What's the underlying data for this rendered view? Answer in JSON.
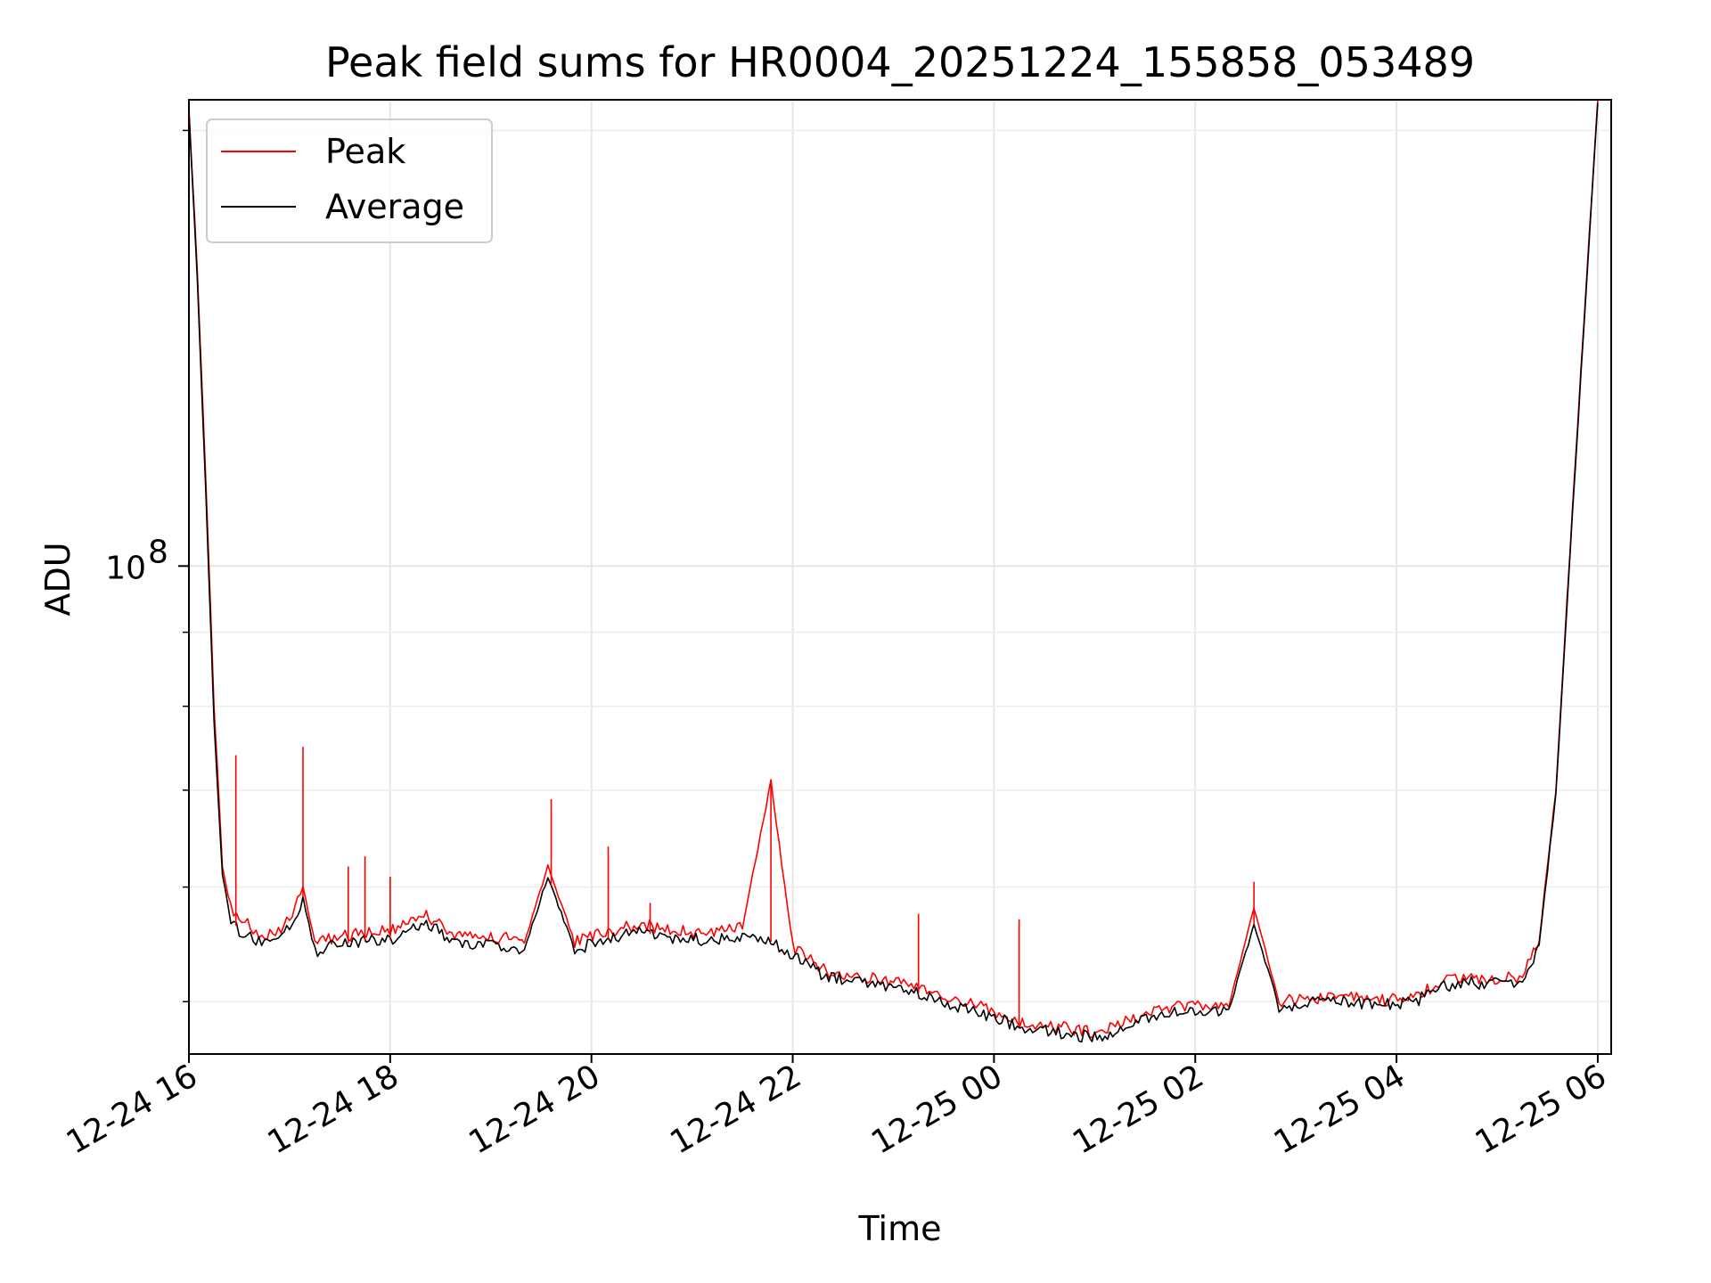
{
  "chart_data": {
    "type": "line",
    "title": "Peak field sums for HR0004_20251224_155858_053489",
    "xlabel": "Time",
    "ylabel": "ADU",
    "y_scale": "log",
    "ylim": [
      46000000,
      210000000
    ],
    "xlim": [
      "2025-12-24 16:00",
      "2025-12-25 06:08"
    ],
    "x_ticks": [
      {
        "t": "2025-12-24 16:00",
        "label": "12-24 16"
      },
      {
        "t": "2025-12-24 18:00",
        "label": "12-24 18"
      },
      {
        "t": "2025-12-24 20:00",
        "label": "12-24 20"
      },
      {
        "t": "2025-12-24 22:00",
        "label": "12-24 22"
      },
      {
        "t": "2025-12-25 00:00",
        "label": "12-25 00"
      },
      {
        "t": "2025-12-25 02:00",
        "label": "12-25 02"
      },
      {
        "t": "2025-12-25 04:00",
        "label": "12-25 04"
      },
      {
        "t": "2025-12-25 06:00",
        "label": "12-25 06"
      }
    ],
    "y_major_ticks": [
      {
        "value": 100000000,
        "base": "10",
        "exp": "8"
      }
    ],
    "y_minor_ticks": [
      50000000,
      60000000,
      70000000,
      80000000,
      90000000,
      200000000
    ],
    "grid": true,
    "legend_position": "top-left",
    "series": [
      {
        "name": "Peak",
        "color": "#ff0000",
        "x": [
          "2025-12-24 16:00",
          "2025-12-24 16:05",
          "2025-12-24 16:10",
          "2025-12-24 16:15",
          "2025-12-24 16:20",
          "2025-12-24 16:25",
          "2025-12-24 16:30",
          "2025-12-24 16:35",
          "2025-12-24 16:40",
          "2025-12-24 16:50",
          "2025-12-24 17:00",
          "2025-12-24 17:08",
          "2025-12-24 17:15",
          "2025-12-24 17:30",
          "2025-12-24 18:00",
          "2025-12-24 18:20",
          "2025-12-24 18:40",
          "2025-12-24 19:00",
          "2025-12-24 19:20",
          "2025-12-24 19:34",
          "2025-12-24 19:50",
          "2025-12-24 20:10",
          "2025-12-24 20:30",
          "2025-12-24 20:50",
          "2025-12-24 21:10",
          "2025-12-24 21:30",
          "2025-12-24 21:47",
          "2025-12-24 22:00",
          "2025-12-24 22:20",
          "2025-12-24 22:40",
          "2025-12-24 23:00",
          "2025-12-24 23:20",
          "2025-12-24 23:40",
          "2025-12-25 00:00",
          "2025-12-25 00:20",
          "2025-12-25 00:40",
          "2025-12-25 01:00",
          "2025-12-25 01:20",
          "2025-12-25 01:40",
          "2025-12-25 02:00",
          "2025-12-25 02:20",
          "2025-12-25 02:35",
          "2025-12-25 02:50",
          "2025-12-25 03:10",
          "2025-12-25 03:30",
          "2025-12-25 03:50",
          "2025-12-25 04:10",
          "2025-12-25 04:25",
          "2025-12-25 04:40",
          "2025-12-25 05:00",
          "2025-12-25 05:15",
          "2025-12-25 05:25",
          "2025-12-25 05:35",
          "2025-12-25 05:45",
          "2025-12-25 05:55",
          "2025-12-25 06:00"
        ],
        "values": [
          207000000,
          160000000,
          115000000,
          80000000,
          62000000,
          58000000,
          57000000,
          56500000,
          56000000,
          55500000,
          57000000,
          60000000,
          55000000,
          55500000,
          56000000,
          57500000,
          55500000,
          55500000,
          55000000,
          62000000,
          55000000,
          56000000,
          56500000,
          56000000,
          55800000,
          56200000,
          71000000,
          54500000,
          52500000,
          52000000,
          51700000,
          51000000,
          50000000,
          49300000,
          48200000,
          48000000,
          47600000,
          48500000,
          49500000,
          49600000,
          49700000,
          58000000,
          50000000,
          50300000,
          50400000,
          50100000,
          50300000,
          51500000,
          52000000,
          51800000,
          52000000,
          55000000,
          70000000,
          110000000,
          170000000,
          210000000
        ]
      },
      {
        "name": "Average",
        "color": "#000000",
        "x": [
          "2025-12-24 16:00",
          "2025-12-24 16:05",
          "2025-12-24 16:10",
          "2025-12-24 16:15",
          "2025-12-24 16:20",
          "2025-12-24 16:25",
          "2025-12-24 16:30",
          "2025-12-24 16:35",
          "2025-12-24 16:40",
          "2025-12-24 16:50",
          "2025-12-24 17:00",
          "2025-12-24 17:08",
          "2025-12-24 17:15",
          "2025-12-24 17:30",
          "2025-12-24 18:00",
          "2025-12-24 18:20",
          "2025-12-24 18:40",
          "2025-12-24 19:00",
          "2025-12-24 19:20",
          "2025-12-24 19:34",
          "2025-12-24 19:50",
          "2025-12-24 20:10",
          "2025-12-24 20:30",
          "2025-12-24 20:50",
          "2025-12-24 21:10",
          "2025-12-24 21:30",
          "2025-12-24 21:47",
          "2025-12-24 22:00",
          "2025-12-24 22:20",
          "2025-12-24 22:40",
          "2025-12-24 23:00",
          "2025-12-24 23:20",
          "2025-12-24 23:40",
          "2025-12-25 00:00",
          "2025-12-25 00:20",
          "2025-12-25 00:40",
          "2025-12-25 01:00",
          "2025-12-25 01:20",
          "2025-12-25 01:40",
          "2025-12-25 02:00",
          "2025-12-25 02:20",
          "2025-12-25 02:35",
          "2025-12-25 02:50",
          "2025-12-25 03:10",
          "2025-12-25 03:30",
          "2025-12-25 03:50",
          "2025-12-25 04:10",
          "2025-12-25 04:25",
          "2025-12-25 04:40",
          "2025-12-25 05:00",
          "2025-12-25 05:15",
          "2025-12-25 05:25",
          "2025-12-25 05:35",
          "2025-12-25 05:45",
          "2025-12-25 05:55",
          "2025-12-25 06:00"
        ],
        "values": [
          206000000,
          158000000,
          113000000,
          78000000,
          61000000,
          57000000,
          56000000,
          55500000,
          55000000,
          55000000,
          56200000,
          59000000,
          54200000,
          54800000,
          55200000,
          56800000,
          54800000,
          54800000,
          54300000,
          61000000,
          54300000,
          55300000,
          55800000,
          55300000,
          55100000,
          55500000,
          55000000,
          53900000,
          52000000,
          51500000,
          51200000,
          50500000,
          49500000,
          48800000,
          47800000,
          47600000,
          47200000,
          48100000,
          49100000,
          49200000,
          49300000,
          56500000,
          49600000,
          49900000,
          50000000,
          49700000,
          49900000,
          51100000,
          51600000,
          51400000,
          51600000,
          54600000,
          69500000,
          109000000,
          169000000,
          209000000
        ]
      }
    ],
    "spikes": [
      {
        "series": "Peak",
        "t": "2025-12-24 16:28",
        "value": 74000000
      },
      {
        "series": "Peak",
        "t": "2025-12-24 17:08",
        "value": 75000000
      },
      {
        "series": "Peak",
        "t": "2025-12-24 17:35",
        "value": 62000000
      },
      {
        "series": "Peak",
        "t": "2025-12-24 17:45",
        "value": 63000000
      },
      {
        "series": "Peak",
        "t": "2025-12-24 18:00",
        "value": 61000000
      },
      {
        "series": "Peak",
        "t": "2025-12-24 19:36",
        "value": 69000000
      },
      {
        "series": "Peak",
        "t": "2025-12-24 20:10",
        "value": 64000000
      },
      {
        "series": "Peak",
        "t": "2025-12-24 20:35",
        "value": 58500000
      },
      {
        "series": "Peak",
        "t": "2025-12-24 21:47",
        "value": 71000000
      },
      {
        "series": "Peak",
        "t": "2025-12-24 23:15",
        "value": 57500000
      },
      {
        "series": "Peak",
        "t": "2025-12-25 00:15",
        "value": 57000000
      },
      {
        "series": "Peak",
        "t": "2025-12-25 02:35",
        "value": 60500000
      }
    ],
    "legend": [
      {
        "label": "Peak",
        "color": "#ff0000"
      },
      {
        "label": "Average",
        "color": "#000000"
      }
    ]
  }
}
